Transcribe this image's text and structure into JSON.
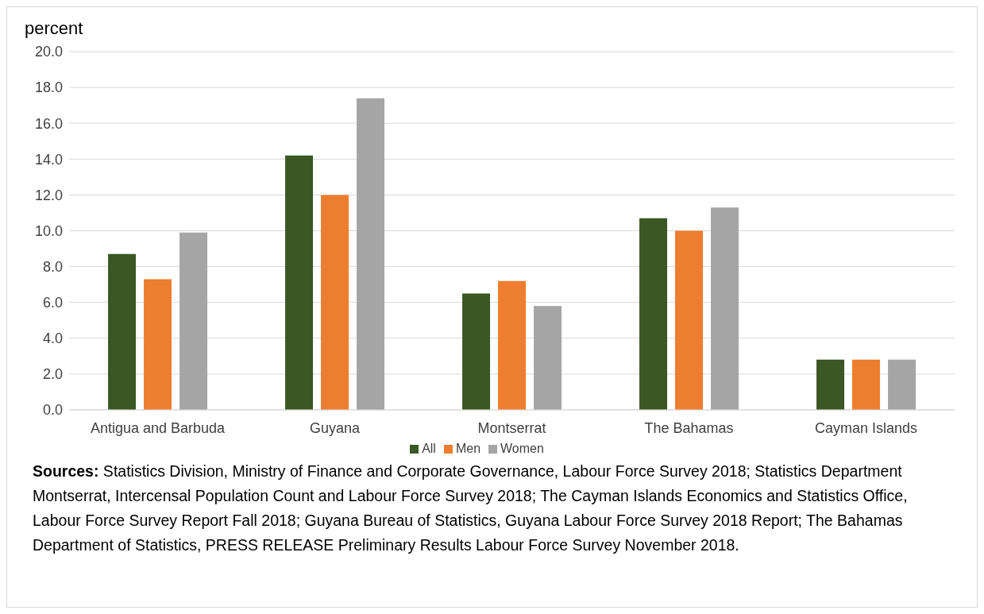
{
  "chart_data": {
    "type": "bar",
    "ylabel": "percent",
    "categories": [
      "Antigua and Barbuda",
      "Guyana",
      "Montserrat",
      "The Bahamas",
      "Cayman Islands"
    ],
    "series": [
      {
        "name": "All",
        "color": "#3b5724",
        "values": [
          8.7,
          14.2,
          6.5,
          10.7,
          2.8
        ]
      },
      {
        "name": "Men",
        "color": "#ed7d31",
        "values": [
          7.3,
          12.0,
          7.2,
          10.0,
          2.8
        ]
      },
      {
        "name": "Women",
        "color": "#a5a5a5",
        "values": [
          9.9,
          17.4,
          5.8,
          11.3,
          2.8
        ]
      }
    ],
    "ylim": [
      0,
      20
    ],
    "yticks": [
      {
        "value": 0,
        "label": "0.0"
      },
      {
        "value": 2,
        "label": "2.0"
      },
      {
        "value": 4,
        "label": "4.0"
      },
      {
        "value": 6,
        "label": "6.0"
      },
      {
        "value": 8,
        "label": "8.0"
      },
      {
        "value": 10,
        "label": "10.0"
      },
      {
        "value": 12,
        "label": "12.0"
      },
      {
        "value": 14,
        "label": "14.0"
      },
      {
        "value": 16,
        "label": "16.0"
      },
      {
        "value": 18,
        "label": "18.0"
      },
      {
        "value": 20,
        "label": "20.0"
      }
    ],
    "grid": "y",
    "legend": "bottom",
    "annotations": [
      "Sources: Statistics Division, Ministry of Finance and Corporate Governance, Labour Force Survey 2018; Statistics Department Montserrat, Intercensal Population Count and Labour Force Survey 2018; The Cayman Islands Economics and Statistics Office, Labour Force Survey Report Fall 2018; Guyana Bureau of Statistics, Guyana Labour Force Survey 2018 Report; The Bahamas Department of Statistics, PRESS RELEASE Preliminary Results Labour Force Survey November 2018."
    ]
  }
}
